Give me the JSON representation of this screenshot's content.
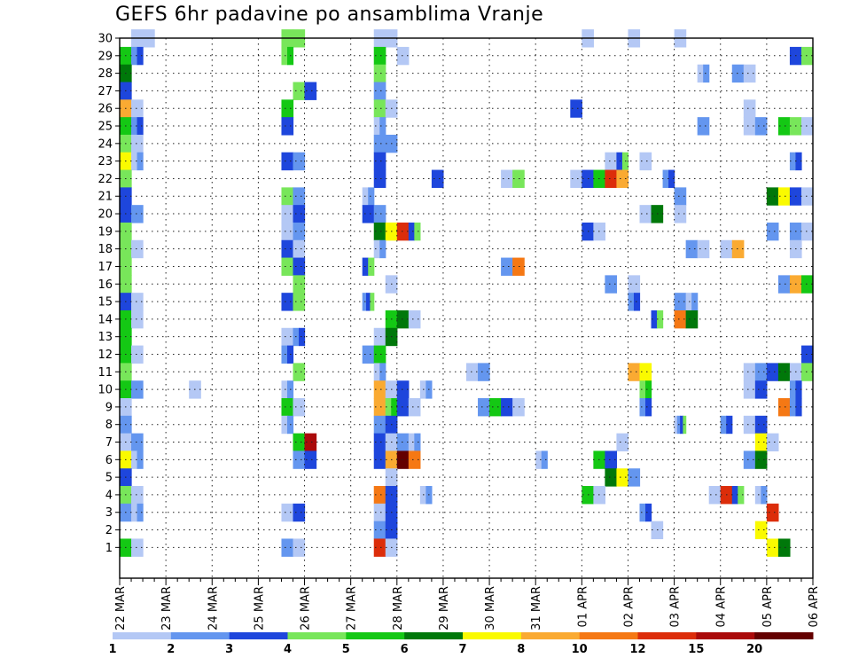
{
  "chart_data": {
    "type": "heatmap",
    "title": "GEFS 6hr padavine po ansamblima Vranje",
    "x_tick_labels": [
      "22 MAR",
      "23 MAR",
      "24 MAR",
      "25 MAR",
      "26 MAR",
      "27 MAR",
      "28 MAR",
      "29 MAR",
      "30 MAR",
      "31 MAR",
      "01 APR",
      "02 APR",
      "03 APR",
      "04 APR",
      "05 APR",
      "06 APR"
    ],
    "y_tick_labels": [
      "1",
      "2",
      "3",
      "4",
      "5",
      "6",
      "7",
      "8",
      "9",
      "10",
      "11",
      "12",
      "13",
      "14",
      "15",
      "16",
      "17",
      "18",
      "19",
      "20",
      "21",
      "22",
      "23",
      "24",
      "25",
      "26",
      "27",
      "28",
      "29",
      "30"
    ],
    "y_range": [
      0,
      30
    ],
    "x_steps_per_day": 4,
    "x_total_steps": 60,
    "grid": "dotted",
    "legend": {
      "position": "bottom",
      "labels": [
        "1",
        "2",
        "3",
        "4",
        "5",
        "6",
        "7",
        "8",
        "10",
        "12",
        "15",
        "20"
      ],
      "colors": [
        "#b4c8f5",
        "#6496ef",
        "#1e46dc",
        "#78e65a",
        "#14c814",
        "#00780a",
        "#fafa00",
        "#faaa32",
        "#f57814",
        "#dc2d0a",
        "#aa0a0a",
        "#640000"
      ]
    },
    "levels_colors": [
      "#b4c8f5",
      "#6496ef",
      "#1e46dc",
      "#78e65a",
      "#14c814",
      "#00780a",
      "#fafa00",
      "#faaa32",
      "#f57814",
      "#dc2d0a",
      "#aa0a0a",
      "#640000"
    ],
    "cells_format": "[member_row, time_step, start_level_index, end_level_index]",
    "cells": [
      [
        30,
        1,
        0,
        1
      ],
      [
        30,
        2,
        0,
        1
      ],
      [
        30,
        14,
        3,
        4
      ],
      [
        30,
        15,
        3,
        4
      ],
      [
        30,
        22,
        0,
        1
      ],
      [
        30,
        23,
        0,
        1
      ],
      [
        30,
        40,
        0,
        1
      ],
      [
        30,
        44,
        0,
        1
      ],
      [
        30,
        48,
        0,
        1
      ],
      [
        29,
        0,
        4,
        5
      ],
      [
        29,
        1,
        1,
        3
      ],
      [
        29,
        14,
        3,
        5
      ],
      [
        29,
        22,
        4,
        5
      ],
      [
        29,
        24,
        0,
        1
      ],
      [
        29,
        58,
        2,
        3
      ],
      [
        29,
        59,
        3,
        4
      ],
      [
        28,
        0,
        5,
        6
      ],
      [
        28,
        22,
        3,
        4
      ],
      [
        28,
        50,
        0,
        2
      ],
      [
        28,
        53,
        1,
        2
      ],
      [
        28,
        54,
        0,
        1
      ],
      [
        27,
        0,
        2,
        3
      ],
      [
        27,
        15,
        3,
        4
      ],
      [
        27,
        16,
        2,
        3
      ],
      [
        27,
        22,
        1,
        2
      ],
      [
        26,
        0,
        7,
        8
      ],
      [
        26,
        1,
        0,
        1
      ],
      [
        26,
        14,
        4,
        5
      ],
      [
        26,
        22,
        3,
        4
      ],
      [
        26,
        23,
        0,
        1
      ],
      [
        26,
        39,
        2,
        3
      ],
      [
        26,
        54,
        0,
        1
      ],
      [
        25,
        0,
        4,
        5
      ],
      [
        25,
        1,
        1,
        3
      ],
      [
        25,
        14,
        2,
        3
      ],
      [
        25,
        22,
        0,
        2
      ],
      [
        25,
        50,
        1,
        2
      ],
      [
        25,
        54,
        0,
        1
      ],
      [
        25,
        55,
        1,
        2
      ],
      [
        25,
        57,
        4,
        5
      ],
      [
        25,
        58,
        3,
        4
      ],
      [
        25,
        59,
        0,
        1
      ],
      [
        24,
        0,
        3,
        4
      ],
      [
        24,
        1,
        0,
        1
      ],
      [
        24,
        22,
        1,
        2
      ],
      [
        24,
        23,
        1,
        2
      ],
      [
        23,
        0,
        6,
        7
      ],
      [
        23,
        1,
        0,
        2
      ],
      [
        23,
        14,
        2,
        3
      ],
      [
        23,
        15,
        1,
        2
      ],
      [
        23,
        22,
        2,
        3
      ],
      [
        23,
        42,
        0,
        1
      ],
      [
        23,
        43,
        2,
        4
      ],
      [
        23,
        45,
        0,
        1
      ],
      [
        23,
        58,
        1,
        3
      ],
      [
        22,
        0,
        3,
        4
      ],
      [
        22,
        22,
        2,
        3
      ],
      [
        22,
        27,
        2,
        3
      ],
      [
        22,
        33,
        0,
        1
      ],
      [
        22,
        34,
        3,
        4
      ],
      [
        22,
        39,
        0,
        1
      ],
      [
        22,
        40,
        2,
        3
      ],
      [
        22,
        41,
        4,
        5
      ],
      [
        22,
        42,
        9,
        10
      ],
      [
        22,
        43,
        7,
        8
      ],
      [
        22,
        47,
        1,
        3
      ],
      [
        21,
        0,
        2,
        3
      ],
      [
        21,
        14,
        3,
        4
      ],
      [
        21,
        15,
        1,
        2
      ],
      [
        21,
        21,
        0,
        2
      ],
      [
        21,
        48,
        1,
        2
      ],
      [
        21,
        56,
        5,
        6
      ],
      [
        21,
        57,
        6,
        7
      ],
      [
        21,
        58,
        2,
        3
      ],
      [
        21,
        59,
        0,
        1
      ],
      [
        20,
        0,
        2,
        3
      ],
      [
        20,
        1,
        1,
        2
      ],
      [
        20,
        14,
        0,
        1
      ],
      [
        20,
        15,
        2,
        3
      ],
      [
        20,
        21,
        2,
        3
      ],
      [
        20,
        22,
        1,
        2
      ],
      [
        20,
        45,
        0,
        1
      ],
      [
        20,
        46,
        5,
        6
      ],
      [
        20,
        48,
        0,
        1
      ],
      [
        19,
        0,
        3,
        4
      ],
      [
        19,
        14,
        0,
        1
      ],
      [
        19,
        15,
        1,
        2
      ],
      [
        19,
        22,
        5,
        6
      ],
      [
        19,
        23,
        6,
        7
      ],
      [
        19,
        24,
        9,
        10
      ],
      [
        19,
        25,
        2,
        4
      ],
      [
        19,
        40,
        2,
        3
      ],
      [
        19,
        41,
        0,
        1
      ],
      [
        19,
        56,
        1,
        2
      ],
      [
        19,
        58,
        1,
        2
      ],
      [
        19,
        59,
        0,
        1
      ],
      [
        18,
        0,
        3,
        4
      ],
      [
        18,
        1,
        0,
        1
      ],
      [
        18,
        14,
        2,
        3
      ],
      [
        18,
        15,
        0,
        1
      ],
      [
        18,
        22,
        0,
        2
      ],
      [
        18,
        49,
        1,
        2
      ],
      [
        18,
        50,
        0,
        1
      ],
      [
        18,
        52,
        0,
        1
      ],
      [
        18,
        53,
        7,
        8
      ],
      [
        18,
        58,
        0,
        1
      ],
      [
        17,
        0,
        3,
        4
      ],
      [
        17,
        14,
        3,
        4
      ],
      [
        17,
        15,
        2,
        3
      ],
      [
        17,
        21,
        2,
        4
      ],
      [
        17,
        33,
        1,
        2
      ],
      [
        17,
        34,
        8,
        9
      ],
      [
        16,
        0,
        3,
        4
      ],
      [
        16,
        15,
        3,
        4
      ],
      [
        16,
        23,
        0,
        1
      ],
      [
        16,
        42,
        1,
        2
      ],
      [
        16,
        44,
        0,
        1
      ],
      [
        16,
        57,
        1,
        2
      ],
      [
        16,
        58,
        7,
        8
      ],
      [
        16,
        59,
        4,
        5
      ],
      [
        15,
        0,
        2,
        3
      ],
      [
        15,
        1,
        0,
        1
      ],
      [
        15,
        14,
        2,
        3
      ],
      [
        15,
        15,
        3,
        4
      ],
      [
        15,
        21,
        1,
        4
      ],
      [
        15,
        44,
        1,
        3
      ],
      [
        15,
        48,
        1,
        2
      ],
      [
        15,
        49,
        0,
        2
      ],
      [
        14,
        0,
        4,
        5
      ],
      [
        14,
        1,
        0,
        1
      ],
      [
        14,
        23,
        4,
        5
      ],
      [
        14,
        24,
        5,
        6
      ],
      [
        14,
        25,
        0,
        1
      ],
      [
        14,
        46,
        2,
        4
      ],
      [
        14,
        48,
        8,
        9
      ],
      [
        14,
        49,
        5,
        6
      ],
      [
        13,
        0,
        4,
        5
      ],
      [
        13,
        14,
        0,
        1
      ],
      [
        13,
        15,
        1,
        3
      ],
      [
        13,
        22,
        0,
        1
      ],
      [
        13,
        23,
        5,
        6
      ],
      [
        12,
        0,
        4,
        5
      ],
      [
        12,
        1,
        0,
        1
      ],
      [
        12,
        14,
        1,
        3
      ],
      [
        12,
        21,
        1,
        2
      ],
      [
        12,
        22,
        4,
        5
      ],
      [
        12,
        59,
        2,
        3
      ],
      [
        11,
        0,
        3,
        4
      ],
      [
        11,
        15,
        3,
        4
      ],
      [
        11,
        22,
        0,
        2
      ],
      [
        11,
        30,
        0,
        1
      ],
      [
        11,
        31,
        1,
        2
      ],
      [
        11,
        44,
        7,
        8
      ],
      [
        11,
        45,
        6,
        7
      ],
      [
        11,
        54,
        0,
        1
      ],
      [
        11,
        55,
        1,
        2
      ],
      [
        11,
        56,
        2,
        3
      ],
      [
        11,
        57,
        5,
        6
      ],
      [
        11,
        58,
        0,
        1
      ],
      [
        11,
        59,
        3,
        4
      ],
      [
        10,
        0,
        4,
        5
      ],
      [
        10,
        1,
        1,
        2
      ],
      [
        10,
        6,
        0,
        1
      ],
      [
        10,
        14,
        0,
        2
      ],
      [
        10,
        22,
        7,
        8
      ],
      [
        10,
        23,
        0,
        1
      ],
      [
        10,
        24,
        2,
        3
      ],
      [
        10,
        26,
        0,
        2
      ],
      [
        10,
        45,
        3,
        5
      ],
      [
        10,
        54,
        0,
        1
      ],
      [
        10,
        55,
        2,
        3
      ],
      [
        10,
        58,
        1,
        3
      ],
      [
        9,
        0,
        0,
        1
      ],
      [
        9,
        14,
        4,
        5
      ],
      [
        9,
        15,
        0,
        1
      ],
      [
        9,
        22,
        7,
        8
      ],
      [
        9,
        23,
        3,
        5
      ],
      [
        9,
        24,
        2,
        3
      ],
      [
        9,
        25,
        0,
        1
      ],
      [
        9,
        31,
        1,
        2
      ],
      [
        9,
        32,
        4,
        5
      ],
      [
        9,
        33,
        2,
        3
      ],
      [
        9,
        34,
        0,
        1
      ],
      [
        9,
        45,
        1,
        3
      ],
      [
        9,
        57,
        8,
        9
      ],
      [
        9,
        58,
        1,
        3
      ],
      [
        8,
        0,
        1,
        2
      ],
      [
        8,
        14,
        0,
        2
      ],
      [
        8,
        22,
        1,
        2
      ],
      [
        8,
        23,
        2,
        3
      ],
      [
        8,
        48,
        0,
        4
      ],
      [
        8,
        52,
        1,
        3
      ],
      [
        8,
        54,
        0,
        1
      ],
      [
        8,
        55,
        2,
        3
      ],
      [
        7,
        0,
        0,
        1
      ],
      [
        7,
        1,
        1,
        2
      ],
      [
        7,
        15,
        4,
        5
      ],
      [
        7,
        16,
        10,
        11
      ],
      [
        7,
        22,
        2,
        3
      ],
      [
        7,
        23,
        0,
        1
      ],
      [
        7,
        24,
        1,
        2
      ],
      [
        7,
        25,
        0,
        2
      ],
      [
        7,
        43,
        0,
        1
      ],
      [
        7,
        55,
        6,
        7
      ],
      [
        7,
        56,
        0,
        1
      ],
      [
        6,
        0,
        6,
        7
      ],
      [
        6,
        1,
        0,
        2
      ],
      [
        6,
        15,
        1,
        2
      ],
      [
        6,
        16,
        2,
        3
      ],
      [
        6,
        22,
        2,
        3
      ],
      [
        6,
        23,
        7,
        8
      ],
      [
        6,
        24,
        11,
        12
      ],
      [
        6,
        25,
        8,
        9
      ],
      [
        6,
        36,
        0,
        2
      ],
      [
        6,
        41,
        4,
        5
      ],
      [
        6,
        42,
        2,
        3
      ],
      [
        6,
        54,
        1,
        2
      ],
      [
        6,
        55,
        5,
        6
      ],
      [
        5,
        0,
        2,
        3
      ],
      [
        5,
        23,
        0,
        1
      ],
      [
        5,
        42,
        5,
        6
      ],
      [
        5,
        43,
        6,
        7
      ],
      [
        5,
        44,
        1,
        2
      ],
      [
        4,
        0,
        3,
        4
      ],
      [
        4,
        1,
        0,
        1
      ],
      [
        4,
        22,
        8,
        9
      ],
      [
        4,
        23,
        2,
        3
      ],
      [
        4,
        26,
        0,
        2
      ],
      [
        4,
        40,
        4,
        5
      ],
      [
        4,
        41,
        0,
        1
      ],
      [
        4,
        51,
        0,
        1
      ],
      [
        4,
        52,
        9,
        10
      ],
      [
        4,
        53,
        2,
        4
      ],
      [
        4,
        55,
        0,
        2
      ],
      [
        3,
        0,
        1,
        2
      ],
      [
        3,
        1,
        0,
        2
      ],
      [
        3,
        14,
        0,
        1
      ],
      [
        3,
        15,
        2,
        3
      ],
      [
        3,
        22,
        0,
        1
      ],
      [
        3,
        23,
        2,
        3
      ],
      [
        3,
        45,
        1,
        3
      ],
      [
        3,
        56,
        9,
        10
      ],
      [
        2,
        22,
        1,
        2
      ],
      [
        2,
        23,
        2,
        3
      ],
      [
        2,
        46,
        0,
        1
      ],
      [
        2,
        55,
        6,
        7
      ],
      [
        1,
        0,
        4,
        5
      ],
      [
        1,
        1,
        0,
        1
      ],
      [
        1,
        14,
        1,
        2
      ],
      [
        1,
        15,
        0,
        1
      ],
      [
        1,
        22,
        9,
        10
      ],
      [
        1,
        23,
        0,
        1
      ],
      [
        1,
        56,
        6,
        7
      ],
      [
        1,
        57,
        5,
        6
      ]
    ]
  }
}
